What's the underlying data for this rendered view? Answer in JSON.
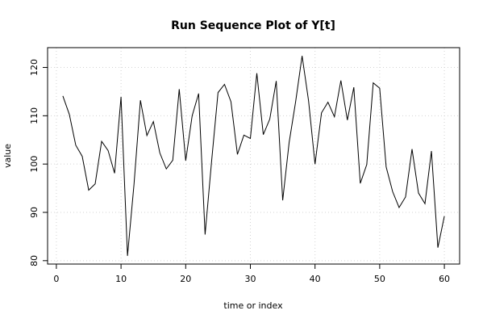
{
  "chart_data": {
    "type": "line",
    "title": "Run Sequence Plot of Y[t]",
    "xlabel": "time or index",
    "ylabel": "value",
    "xlim": [
      -1.36,
      62.36
    ],
    "ylim": [
      79.3,
      124.1
    ],
    "xticks": [
      0,
      10,
      20,
      30,
      40,
      50,
      60
    ],
    "yticks": [
      80,
      90,
      100,
      110,
      120
    ],
    "grid": true,
    "x": [
      1,
      2,
      3,
      4,
      5,
      6,
      7,
      8,
      9,
      10,
      11,
      12,
      13,
      14,
      15,
      16,
      17,
      18,
      19,
      20,
      21,
      22,
      23,
      24,
      25,
      26,
      27,
      28,
      29,
      30,
      31,
      32,
      33,
      34,
      35,
      36,
      37,
      38,
      39,
      40,
      41,
      42,
      43,
      44,
      45,
      46,
      47,
      48,
      49,
      50,
      51,
      52,
      53,
      54,
      55,
      56,
      57,
      58,
      59,
      60
    ],
    "series": [
      {
        "values": [
          114.1,
          110.3,
          103.9,
          101.6,
          94.6,
          95.9,
          104.7,
          102.8,
          98.1,
          113.9,
          81.0,
          95.7,
          113.2,
          105.9,
          108.8,
          102.3,
          99.0,
          100.8,
          115.5,
          100.7,
          110.0,
          114.6,
          85.4,
          100.5,
          114.8,
          116.5,
          112.9,
          102.0,
          106.0,
          105.3,
          118.8,
          106.1,
          109.3,
          117.2,
          92.5,
          104.5,
          112.9,
          122.4,
          113.1,
          100.0,
          110.6,
          112.8,
          109.8,
          117.3,
          109.1,
          115.9,
          96.0,
          99.9,
          116.8,
          115.7,
          99.4,
          94.3,
          91.0,
          93.2,
          103.1,
          94.0,
          91.8,
          102.7,
          82.7,
          89.2
        ],
        "color": "#000000"
      }
    ]
  }
}
